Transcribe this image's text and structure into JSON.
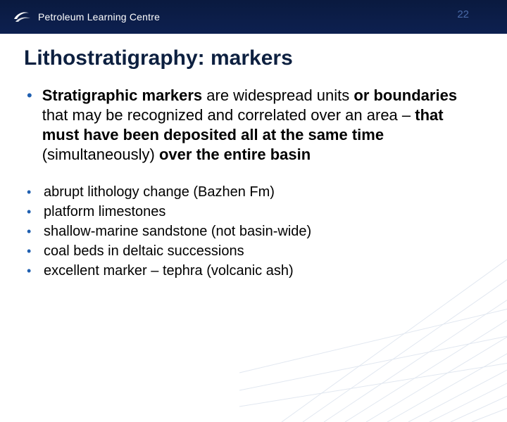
{
  "header": {
    "brand": "Petroleum Learning Centre",
    "slide_number": "22",
    "brand_color": "#ffffff",
    "bg_gradient_top": "#0a1a3f",
    "bg_gradient_bottom": "#0d2050",
    "slide_number_color": "#4a6aa8"
  },
  "title": {
    "text": "Lithostratigraphy: markers",
    "color": "#0d2040",
    "fontsize": 30
  },
  "main_bullet": {
    "html": "<b>Stratigraphic markers</b> are widespread units <b>or boundaries</b> that may be recognized and correlated over an area – <b>that must have been deposited all at the same time</b> (simultaneously) <b>over the entire basin</b>",
    "fontsize": 22,
    "bullet_color": "#1f5fb0"
  },
  "sub_bullets": {
    "items": [
      "abrupt lithology change (Bazhen Fm)",
      "platform limestones",
      "shallow-marine sandstone (not basin-wide)",
      "coal beds in deltaic successions",
      "excellent marker –  tephra (volcanic ash)"
    ],
    "fontsize": 20,
    "bullet_color": "#1f5fb0"
  },
  "decoration": {
    "stroke_color": "#c9d4e4",
    "opacity": 0.55
  }
}
